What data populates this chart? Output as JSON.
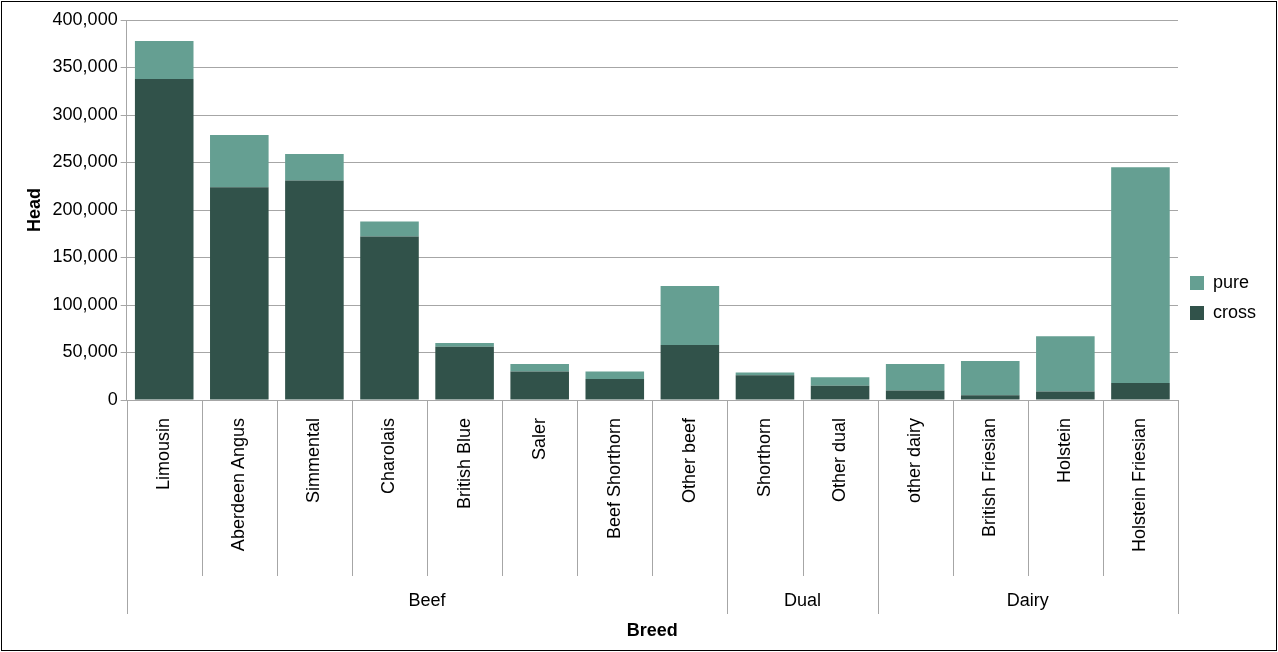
{
  "chart_data": {
    "type": "bar",
    "stacked": true,
    "xlabel": "Breed",
    "ylabel": "Head",
    "categories": [
      "Limousin",
      "Aberdeen Angus",
      "Simmental",
      "Charolais",
      "British Blue",
      "Saler",
      "Beef Shorthorn",
      "Other beef",
      "Shorthorn",
      "Other dual",
      "other dairy",
      "British Friesian",
      "Holstein",
      "Holstein Friesian"
    ],
    "series": [
      {
        "name": "cross",
        "color": "#31524a",
        "values": [
          338000,
          224000,
          231000,
          172000,
          56000,
          30000,
          22000,
          58000,
          26000,
          15000,
          10000,
          5000,
          9000,
          18000
        ]
      },
      {
        "name": "pure",
        "color": "#659f92",
        "values": [
          40000,
          55000,
          28000,
          16000,
          4000,
          8000,
          8000,
          62000,
          3000,
          9000,
          28000,
          36000,
          58000,
          227000
        ]
      }
    ],
    "ylim": [
      0,
      400000
    ],
    "yticks": [
      0,
      {
        "value": 50000,
        "label": "50,000"
      },
      {
        "value": 100000,
        "label": "100,000"
      },
      {
        "value": 150000,
        "label": "150,000"
      },
      {
        "value": 200000,
        "label": "200,000"
      },
      {
        "value": 250000,
        "label": "250,000"
      },
      {
        "value": 300000,
        "label": "300,000"
      },
      {
        "value": 350000,
        "label": "350,000"
      },
      {
        "value": 400000,
        "label": "400,000"
      }
    ],
    "grid": "y",
    "legend": "right",
    "annotations": [
      "Beef",
      "Dual",
      "Dairy"
    ]
  }
}
